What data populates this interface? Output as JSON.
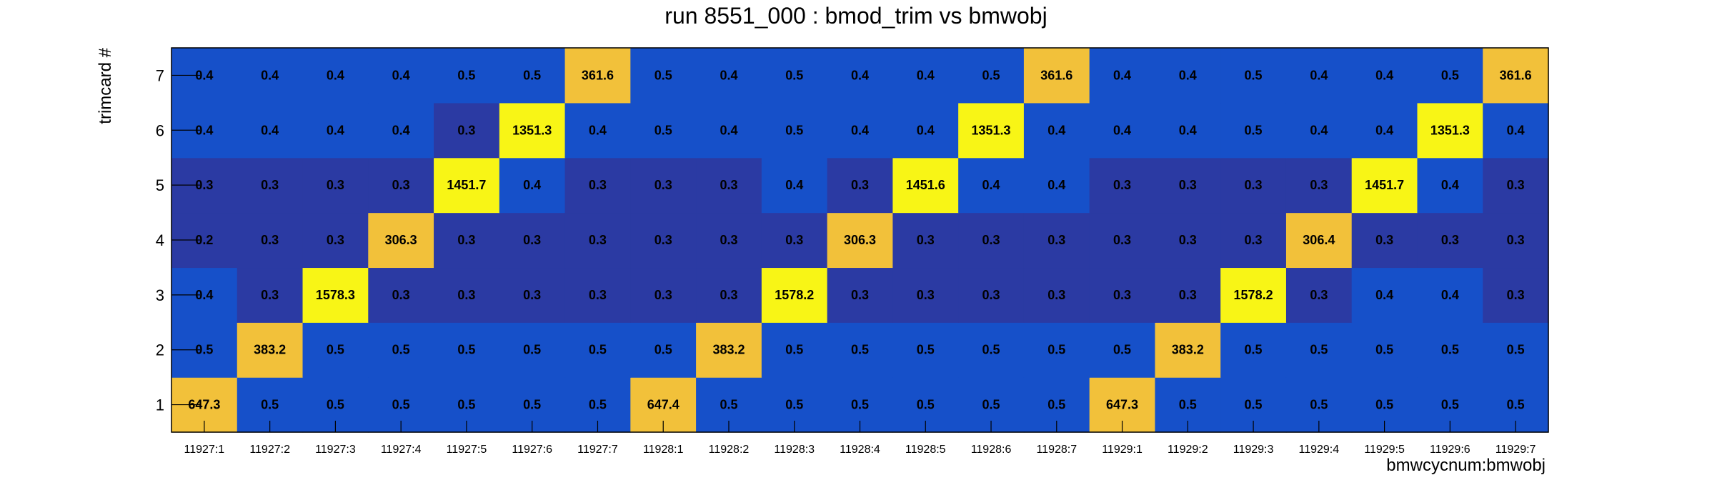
{
  "chart_data": {
    "type": "heatmap",
    "title": "run 8551_000 : bmod_trim vs bmwobj",
    "xlabel": "bmwcycnum:bmwobj",
    "ylabel": "trimcard #",
    "x_categories": [
      "11927:1",
      "11927:2",
      "11927:3",
      "11927:4",
      "11927:5",
      "11927:6",
      "11927:7",
      "11928:1",
      "11928:2",
      "11928:3",
      "11928:4",
      "11928:5",
      "11928:6",
      "11928:7",
      "11929:1",
      "11929:2",
      "11929:3",
      "11929:4",
      "11929:5",
      "11929:6",
      "11929:7"
    ],
    "y_categories": [
      "1",
      "2",
      "3",
      "4",
      "5",
      "6",
      "7"
    ],
    "values": [
      [
        "647.3",
        "0.5",
        "0.5",
        "0.5",
        "0.5",
        "0.5",
        "0.5",
        "647.4",
        "0.5",
        "0.5",
        "0.5",
        "0.5",
        "0.5",
        "0.5",
        "647.3",
        "0.5",
        "0.5",
        "0.5",
        "0.5",
        "0.5",
        "0.5"
      ],
      [
        "0.5",
        "383.2",
        "0.5",
        "0.5",
        "0.5",
        "0.5",
        "0.5",
        "0.5",
        "383.2",
        "0.5",
        "0.5",
        "0.5",
        "0.5",
        "0.5",
        "0.5",
        "383.2",
        "0.5",
        "0.5",
        "0.5",
        "0.5",
        "0.5"
      ],
      [
        "0.4",
        "0.3",
        "1578.3",
        "0.3",
        "0.3",
        "0.3",
        "0.3",
        "0.3",
        "0.3",
        "1578.2",
        "0.3",
        "0.3",
        "0.3",
        "0.3",
        "0.3",
        "0.3",
        "1578.2",
        "0.3",
        "0.4",
        "0.4",
        "0.3"
      ],
      [
        "0.2",
        "0.3",
        "0.3",
        "306.3",
        "0.3",
        "0.3",
        "0.3",
        "0.3",
        "0.3",
        "0.3",
        "306.3",
        "0.3",
        "0.3",
        "0.3",
        "0.3",
        "0.3",
        "0.3",
        "306.4",
        "0.3",
        "0.3",
        "0.3"
      ],
      [
        "0.3",
        "0.3",
        "0.3",
        "0.3",
        "1451.7",
        "0.4",
        "0.3",
        "0.3",
        "0.3",
        "0.4",
        "0.3",
        "1451.6",
        "0.4",
        "0.4",
        "0.3",
        "0.3",
        "0.3",
        "0.3",
        "1451.7",
        "0.4",
        "0.3"
      ],
      [
        "0.4",
        "0.4",
        "0.4",
        "0.4",
        "0.3",
        "1351.3",
        "0.4",
        "0.5",
        "0.4",
        "0.5",
        "0.4",
        "0.4",
        "1351.3",
        "0.4",
        "0.4",
        "0.4",
        "0.5",
        "0.4",
        "0.4",
        "1351.3",
        "0.4"
      ],
      [
        "0.4",
        "0.4",
        "0.4",
        "0.4",
        "0.5",
        "0.5",
        "361.6",
        "0.5",
        "0.4",
        "0.5",
        "0.4",
        "0.4",
        "0.5",
        "361.6",
        "0.4",
        "0.4",
        "0.5",
        "0.4",
        "0.4",
        "0.5",
        "361.6"
      ]
    ],
    "colors": {
      "low_dark": "#2b3aa3",
      "low_mid": "#1650c9",
      "high_orange": "#f2c13a",
      "high_yellow": "#f8f516"
    },
    "grid": false,
    "legend": "none"
  }
}
